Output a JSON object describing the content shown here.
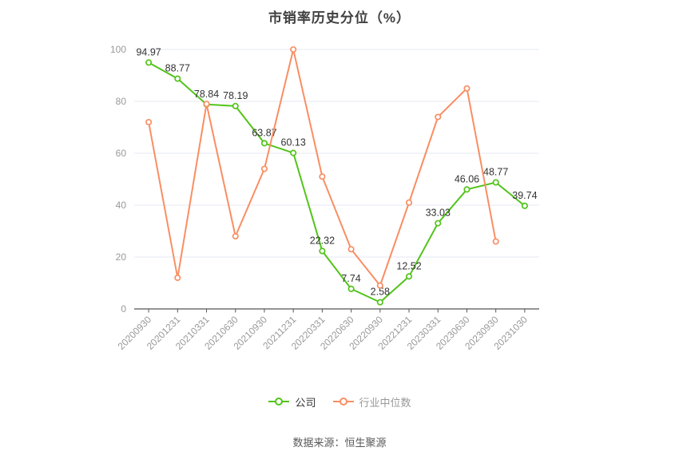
{
  "header": {
    "title": "市销率历史分位（%）"
  },
  "footer": {
    "source": "数据来源：恒生聚源"
  },
  "legend": {
    "items": [
      {
        "id": "company",
        "label": "公司",
        "color": "#52c41a",
        "text_color": "#333333"
      },
      {
        "id": "industry-median",
        "label": "行业中位数",
        "color": "#f98e63",
        "text_color": "#999999"
      }
    ]
  },
  "chart_data": {
    "type": "line",
    "title": "市销率历史分位（%）",
    "xlabel": "",
    "ylabel": "",
    "ylim": [
      0,
      100
    ],
    "yticks": [
      0,
      20,
      40,
      60,
      80,
      100
    ],
    "grid": true,
    "legend_position": "bottom",
    "categories": [
      "20200930",
      "20201231",
      "20210331",
      "20210630",
      "20210930",
      "20211231",
      "20220331",
      "20220630",
      "20220930",
      "20221231",
      "20230331",
      "20230630",
      "20230930",
      "20231030"
    ],
    "series": [
      {
        "id": "company",
        "name": "公司",
        "color": "#52c41a",
        "show_labels": true,
        "values": [
          94.97,
          88.77,
          78.84,
          78.19,
          63.87,
          60.13,
          22.32,
          7.74,
          2.58,
          12.52,
          33.03,
          46.06,
          48.77,
          39.74
        ]
      },
      {
        "id": "industry-median",
        "name": "行业中位数",
        "color": "#f98e63",
        "show_labels": false,
        "values": [
          72,
          12,
          79,
          28,
          54,
          100,
          51,
          23,
          9,
          41,
          74,
          85,
          26,
          null
        ]
      }
    ],
    "style": {
      "grid_color": "#e4eaf3",
      "axis_color": "#555555",
      "tick_label_color": "#999999",
      "data_label_color": "#333333"
    }
  }
}
